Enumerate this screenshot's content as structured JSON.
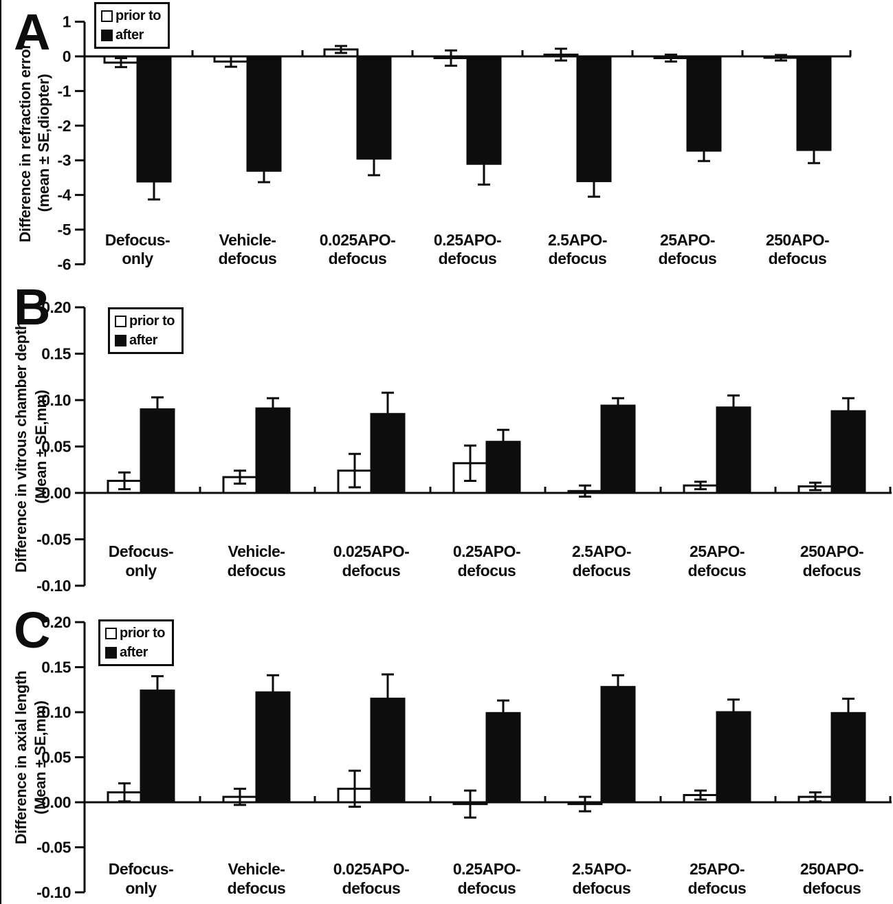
{
  "figure": {
    "background": "#ffffff",
    "ink": "#0d0d0d"
  },
  "chart_data": [
    {
      "type": "bar",
      "panel_label": "A",
      "ylabel1": "Difference in refraction error",
      "ylabel2": "(mean ± SE,diopter)",
      "ylim": [
        -6,
        1
      ],
      "yticks": [
        1,
        0,
        -1,
        -2,
        -3,
        -4,
        -5,
        -6
      ],
      "ytick_labels": [
        "1",
        "0",
        "-1",
        "-2",
        "-3",
        "-4",
        "-5",
        "-6"
      ],
      "categories": [
        [
          "Defocus-",
          "only"
        ],
        [
          "Vehicle-",
          "defocus"
        ],
        [
          "0.025APO-",
          "defocus"
        ],
        [
          "0.25APO-",
          "defocus"
        ],
        [
          "2.5APO-",
          "defocus"
        ],
        [
          "25APO-",
          "defocus"
        ],
        [
          "250APO-",
          "defocus"
        ]
      ],
      "legend": {
        "prior": "prior to",
        "after": "after"
      },
      "grid": false,
      "legend_position": "top-left",
      "series": [
        {
          "name": "prior to",
          "fill": "white",
          "values": [
            -0.18,
            -0.15,
            0.2,
            -0.05,
            0.05,
            -0.05,
            -0.04
          ],
          "errors": [
            0.13,
            0.15,
            0.1,
            0.22,
            0.17,
            0.1,
            0.08
          ]
        },
        {
          "name": "after",
          "fill": "black",
          "values": [
            -3.61,
            -3.3,
            -2.95,
            -3.1,
            -3.6,
            -2.72,
            -2.7
          ],
          "errors": [
            0.52,
            0.33,
            0.48,
            0.6,
            0.45,
            0.3,
            0.38
          ]
        }
      ]
    },
    {
      "type": "bar",
      "panel_label": "B",
      "ylabel1": "Difference in vitrous chamber depth",
      "ylabel2": "(Mean ± SE,mm)",
      "ylim": [
        -0.1,
        0.2
      ],
      "yticks": [
        0.2,
        0.15,
        0.1,
        0.05,
        0.0,
        -0.05,
        -0.1
      ],
      "ytick_labels": [
        "0.20",
        "0.15",
        "0.10",
        "0.05",
        "0.00",
        "-0.05",
        "-0.10"
      ],
      "categories": [
        [
          "Defocus-",
          "only"
        ],
        [
          "Vehicle-",
          "defocus"
        ],
        [
          "0.025APO-",
          "defocus"
        ],
        [
          "0.25APO-",
          "defocus"
        ],
        [
          "2.5APO-",
          "defocus"
        ],
        [
          "25APO-",
          "defocus"
        ],
        [
          "250APO-",
          "defocus"
        ]
      ],
      "legend": {
        "prior": "prior to",
        "after": "after"
      },
      "grid": false,
      "legend_position": "top-left",
      "series": [
        {
          "name": "prior to",
          "fill": "white",
          "values": [
            0.013,
            0.017,
            0.024,
            0.032,
            0.002,
            0.008,
            0.007
          ],
          "errors": [
            0.009,
            0.007,
            0.018,
            0.019,
            0.006,
            0.004,
            0.004
          ]
        },
        {
          "name": "after",
          "fill": "black",
          "values": [
            0.09,
            0.091,
            0.085,
            0.055,
            0.094,
            0.092,
            0.088
          ],
          "errors": [
            0.013,
            0.011,
            0.023,
            0.013,
            0.008,
            0.013,
            0.014
          ]
        }
      ]
    },
    {
      "type": "bar",
      "panel_label": "C",
      "ylabel1": "Difference in axial length",
      "ylabel2": "(Mean ± SE,mm)",
      "ylim": [
        -0.1,
        0.2
      ],
      "yticks": [
        0.2,
        0.15,
        0.1,
        0.05,
        0.0,
        -0.05,
        -0.1
      ],
      "ytick_labels": [
        "0.20",
        "0.15",
        "0.10",
        "0.05",
        "0.00",
        "-0.05",
        "-0.10"
      ],
      "categories": [
        [
          "Defocus-",
          "only"
        ],
        [
          "Vehicle-",
          "defocus"
        ],
        [
          "0.025APO-",
          "defocus"
        ],
        [
          "0.25APO-",
          "defocus"
        ],
        [
          "2.5APO-",
          "defocus"
        ],
        [
          "25APO-",
          "defocus"
        ],
        [
          "250APO-",
          "defocus"
        ]
      ],
      "legend": {
        "prior": "prior to",
        "after": "after"
      },
      "grid": false,
      "legend_position": "top-left",
      "series": [
        {
          "name": "prior to",
          "fill": "white",
          "values": [
            0.011,
            0.006,
            0.015,
            -0.002,
            -0.002,
            0.008,
            0.006
          ],
          "errors": [
            0.01,
            0.009,
            0.02,
            0.015,
            0.008,
            0.005,
            0.005
          ]
        },
        {
          "name": "after",
          "fill": "black",
          "values": [
            0.124,
            0.122,
            0.115,
            0.099,
            0.128,
            0.1,
            0.099
          ],
          "errors": [
            0.016,
            0.019,
            0.027,
            0.014,
            0.013,
            0.014,
            0.016
          ]
        }
      ]
    }
  ]
}
